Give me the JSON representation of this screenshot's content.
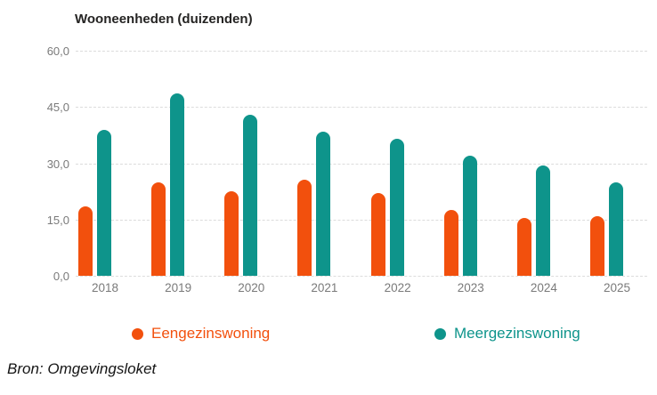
{
  "title": {
    "text": "Wooneenheden",
    "unit": "(duizenden)"
  },
  "legend": {
    "items": [
      {
        "label": "Eengezinswoning",
        "color": "#F2500D"
      },
      {
        "label": "Meergezinswoning",
        "color": "#0E948B"
      }
    ]
  },
  "source": "Bron: Omgevingsloket",
  "chart_data": {
    "type": "bar",
    "title": "Wooneenheden (duizenden)",
    "categories": [
      "2018",
      "2019",
      "2020",
      "2021",
      "2022",
      "2023",
      "2024",
      "2025"
    ],
    "series": [
      {
        "name": "Eengezinswoning",
        "color": "#F2500D",
        "values": [
          18.5,
          25.0,
          22.5,
          25.5,
          22.0,
          17.5,
          15.5,
          16.0
        ]
      },
      {
        "name": "Meergezinswoning",
        "color": "#0E948B",
        "values": [
          39.0,
          48.5,
          43.0,
          38.5,
          36.5,
          32.0,
          29.5,
          25.0
        ]
      }
    ],
    "xlabel": "",
    "ylabel": "Wooneenheden (duizenden)",
    "ylim": [
      0,
      60
    ],
    "yticks": [
      {
        "value": 60,
        "label": "60,0"
      },
      {
        "value": 45,
        "label": "45,0"
      },
      {
        "value": 30,
        "label": "30,0"
      },
      {
        "value": 15,
        "label": "15,0"
      },
      {
        "value": 0,
        "label": "0,0"
      }
    ],
    "grid": "horizontal-dashed",
    "legend_position": "bottom",
    "value_format": "decimal-comma"
  }
}
